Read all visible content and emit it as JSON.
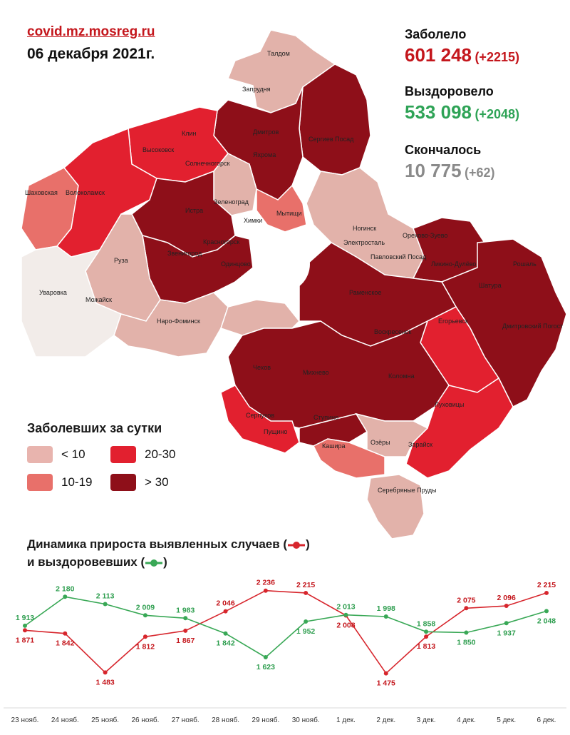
{
  "header": {
    "source": "covid.mz.mosreg.ru",
    "date": "06 декабря 2021г."
  },
  "stats": {
    "sick": {
      "label": "Заболело",
      "value": "601 248",
      "delta": "(+2215)",
      "color": "#c4161c"
    },
    "recovered": {
      "label": "Выздоровело",
      "value": "533 098",
      "delta": "(+2048)",
      "color": "#2ea356"
    },
    "died": {
      "label": "Скончалось",
      "value": "10 775",
      "delta": "(+62)",
      "color": "#8a8a8a"
    }
  },
  "map": {
    "district_labels": [
      "Талдом",
      "Запрудня",
      "Дмитров",
      "Сергиев Посад",
      "Клин",
      "Высоковск",
      "Яхрома",
      "Солнечногорск",
      "Шаховская",
      "Волоколамск",
      "Истра",
      "Зеленоград",
      "Мытищи",
      "Химки",
      "Ногинск",
      "Электросталь",
      "Орехово-Зуево",
      "Красногорск",
      "Звенигород",
      "Одинцово",
      "Павловский Посад",
      "Ликино-Дулёво",
      "Рошаль",
      "Руза",
      "Шатура",
      "Уваровка",
      "Можайск",
      "Раменское",
      "Наро-Фоминск",
      "Егорьевск",
      "Воскресенск",
      "Дмитровский Погост",
      "Чехов",
      "Михнево",
      "Коломна",
      "Серпухов",
      "Ступино",
      "Луховицы",
      "Пущино",
      "Озёры",
      "Кашира",
      "Зарайск",
      "Серебряные Пруды"
    ]
  },
  "legend": {
    "title": "Заболевших за сутки",
    "items": [
      {
        "label": "< 10",
        "color": "#e8b4ae"
      },
      {
        "label": "20-30",
        "color": "#e2202f"
      },
      {
        "label": "10-19",
        "color": "#e8706a"
      },
      {
        "label": "> 30",
        "color": "#8e0f19"
      }
    ]
  },
  "chart_title": {
    "line1": "Динамика прироста выявленных случаев (",
    "line1_end": ")",
    "line2": "и выздоровевших (",
    "line2_end": ")"
  },
  "chart_data": {
    "type": "line",
    "categories": [
      "23 нояб.",
      "24 нояб.",
      "25 нояб.",
      "26 нояб.",
      "27 нояб.",
      "28 нояб.",
      "29 нояб.",
      "30 нояб.",
      "1 дек.",
      "2 дек.",
      "3 дек.",
      "4 дек.",
      "5 дек.",
      "6 дек."
    ],
    "series": [
      {
        "key": "cases",
        "color": "#d7262d",
        "values": [
          1871,
          1842,
          1483,
          1812,
          1867,
          2046,
          2236,
          2215,
          2008,
          1475,
          1813,
          2075,
          2096,
          2215
        ],
        "labels": [
          "1 871",
          "1 842",
          "1 483",
          "1 812",
          "1 867",
          "2 046",
          "2 236",
          "2 215",
          "2 008",
          "1 475",
          "1 813",
          "2 075",
          "2 096",
          "2 215"
        ]
      },
      {
        "key": "recovered",
        "color": "#39a856",
        "values": [
          1913,
          2180,
          2113,
          2009,
          1983,
          1842,
          1623,
          1952,
          2013,
          1998,
          1858,
          1850,
          1937,
          2048
        ],
        "labels": [
          "1 913",
          "2 180",
          "2 113",
          "2 009",
          "1 983",
          "1 842",
          "1 623",
          "1 952",
          "2 013",
          "1 998",
          "1 858",
          "1 850",
          "1 937",
          "2 048"
        ]
      }
    ],
    "ylim": [
      1400,
      2300
    ],
    "grid": false,
    "legend": "none"
  }
}
